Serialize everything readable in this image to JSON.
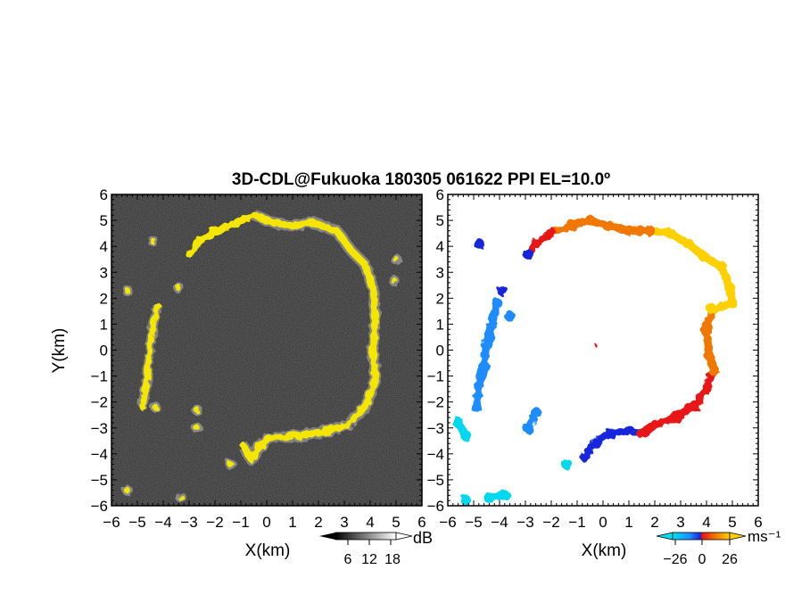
{
  "chart_data": [
    {
      "type": "heatmap",
      "title": "3D-CDL@Fukuoka 180305 061622 PPI EL=10.0º",
      "xlabel": "X(km)",
      "ylabel": "Y(km)",
      "xlim": [
        -6,
        6
      ],
      "ylim": [
        -6,
        6
      ],
      "x_ticks": [
        "−6",
        "−5",
        "−4",
        "−3",
        "−2",
        "−1",
        "0",
        "1",
        "2",
        "3",
        "4",
        "5",
        "6"
      ],
      "y_ticks": [
        "6",
        "5",
        "4",
        "3",
        "2",
        "1",
        "0",
        "−1",
        "−2",
        "−3",
        "−4",
        "−5",
        "−6"
      ],
      "colorbar": {
        "label": "dB",
        "ticks": [
          "6",
          "12",
          "18"
        ],
        "range": [
          0,
          21
        ]
      },
      "colors": {
        "background": "#111111",
        "echo": "#f5e600",
        "weak_echo": "#bbbbbb"
      },
      "echo_ring": [
        [
          -0.5,
          5.2
        ],
        [
          0.3,
          4.9
        ],
        [
          1.0,
          4.8
        ],
        [
          1.8,
          4.9
        ],
        [
          2.7,
          4.6
        ],
        [
          3.3,
          3.8
        ],
        [
          3.8,
          3.3
        ],
        [
          4.1,
          2.4
        ],
        [
          4.2,
          1.3
        ],
        [
          4.1,
          0.1
        ],
        [
          4.2,
          -1.2
        ],
        [
          3.8,
          -2.2
        ],
        [
          3.1,
          -2.9
        ],
        [
          2.0,
          -3.2
        ],
        [
          1.0,
          -3.3
        ],
        [
          0.1,
          -3.4
        ],
        [
          -0.3,
          -3.7
        ],
        [
          -0.6,
          -4.2
        ],
        [
          -0.9,
          -3.7
        ]
      ],
      "echo_left_arc": [
        [
          -4.2,
          1.7
        ],
        [
          -4.4,
          1.0
        ],
        [
          -4.5,
          0.1
        ],
        [
          -4.6,
          -0.8
        ],
        [
          -4.7,
          -1.6
        ],
        [
          -4.8,
          -2.2
        ]
      ],
      "echo_upper_arc": [
        [
          -0.5,
          5.2
        ],
        [
          -1.2,
          4.9
        ],
        [
          -2.0,
          4.6
        ],
        [
          -2.6,
          4.2
        ],
        [
          -3.0,
          3.7
        ]
      ],
      "echo_patches": [
        [
          -5.4,
          2.3
        ],
        [
          -3.4,
          2.4
        ],
        [
          -2.7,
          -2.3
        ],
        [
          -2.7,
          -3.0
        ],
        [
          -4.3,
          -2.2
        ],
        [
          -1.4,
          -4.4
        ],
        [
          -5.4,
          -5.4
        ],
        [
          -3.3,
          -5.7
        ],
        [
          5.0,
          3.5
        ],
        [
          4.9,
          2.7
        ],
        [
          -4.4,
          4.2
        ]
      ]
    },
    {
      "type": "heatmap",
      "title": "",
      "xlabel": "X(km)",
      "ylabel": "",
      "xlim": [
        -6,
        6
      ],
      "ylim": [
        -6,
        6
      ],
      "x_ticks": [
        "−6",
        "−5",
        "−4",
        "−3",
        "−2",
        "−1",
        "0",
        "1",
        "2",
        "3",
        "4",
        "5",
        "6"
      ],
      "y_ticks": [
        "6",
        "5",
        "4",
        "3",
        "2",
        "1",
        "0",
        "−1",
        "−2",
        "−3",
        "−4",
        "−5",
        "−6"
      ],
      "colorbar": {
        "label": "ms⁻¹",
        "ticks": [
          "−26",
          "0",
          "26"
        ],
        "range": [
          -30,
          30
        ]
      },
      "colors": {
        "background": "#ffffff",
        "neg_far": "#00d8f0",
        "neg": "#1e8cff",
        "neg_near": "#1428dc",
        "pos_near": "#e81414",
        "pos": "#f07800",
        "pos_far": "#ffd000"
      },
      "velocity_points": [
        {
          "x": -2.9,
          "y": 3.7,
          "v": -24
        },
        {
          "x": -2.6,
          "y": 4.1,
          "v": 22
        },
        {
          "x": -2.0,
          "y": 4.5,
          "v": 20
        },
        {
          "x": -1.2,
          "y": 4.8,
          "v": 18
        },
        {
          "x": -0.5,
          "y": 5.0,
          "v": 16
        },
        {
          "x": 0.2,
          "y": 4.8,
          "v": 14
        },
        {
          "x": 1.0,
          "y": 4.6,
          "v": 12
        },
        {
          "x": 1.8,
          "y": 4.6,
          "v": 10
        },
        {
          "x": 2.6,
          "y": 4.5,
          "v": 8
        },
        {
          "x": 3.3,
          "y": 4.1,
          "v": 6
        },
        {
          "x": 3.9,
          "y": 3.6,
          "v": 5
        },
        {
          "x": 4.6,
          "y": 3.2,
          "v": 5
        },
        {
          "x": 4.9,
          "y": 2.4,
          "v": 6
        },
        {
          "x": 5.0,
          "y": 1.8,
          "v": 8
        },
        {
          "x": 4.2,
          "y": 1.6,
          "v": 9
        },
        {
          "x": 4.0,
          "y": 0.7,
          "v": 13
        },
        {
          "x": 4.1,
          "y": -0.2,
          "v": 16
        },
        {
          "x": 4.3,
          "y": -0.8,
          "v": 18
        },
        {
          "x": 4.0,
          "y": -1.4,
          "v": 20
        },
        {
          "x": 3.6,
          "y": -2.1,
          "v": 22
        },
        {
          "x": 2.8,
          "y": -2.6,
          "v": 24
        },
        {
          "x": 2.0,
          "y": -2.9,
          "v": 25
        },
        {
          "x": 1.5,
          "y": -3.2,
          "v": 27
        },
        {
          "x": 1.0,
          "y": -3.1,
          "v": -28
        },
        {
          "x": 0.3,
          "y": -3.2,
          "v": -27
        },
        {
          "x": -0.3,
          "y": -3.6,
          "v": -25
        },
        {
          "x": -0.7,
          "y": -4.1,
          "v": -24
        },
        {
          "x": -2.6,
          "y": -2.4,
          "v": -18
        },
        {
          "x": -2.9,
          "y": -3.0,
          "v": -17
        },
        {
          "x": -4.1,
          "y": 1.8,
          "v": -15
        },
        {
          "x": -4.3,
          "y": 1.0,
          "v": -14
        },
        {
          "x": -4.5,
          "y": 0.2,
          "v": -14
        },
        {
          "x": -4.6,
          "y": -0.6,
          "v": -15
        },
        {
          "x": -4.8,
          "y": -1.4,
          "v": -16
        },
        {
          "x": -4.9,
          "y": -2.2,
          "v": -17
        },
        {
          "x": -4.8,
          "y": 4.1,
          "v": -24
        },
        {
          "x": -3.9,
          "y": 2.3,
          "v": -20
        },
        {
          "x": -5.6,
          "y": -2.8,
          "v": -9
        },
        {
          "x": -5.3,
          "y": -3.3,
          "v": -8
        },
        {
          "x": -5.3,
          "y": -5.8,
          "v": -8
        },
        {
          "x": -3.8,
          "y": -5.6,
          "v": -8
        },
        {
          "x": -4.4,
          "y": -5.7,
          "v": -8
        },
        {
          "x": -1.4,
          "y": -4.4,
          "v": -12
        },
        {
          "x": -3.6,
          "y": 1.3,
          "v": -14
        },
        {
          "x": -0.3,
          "y": 0.2,
          "v": 20
        }
      ]
    }
  ]
}
